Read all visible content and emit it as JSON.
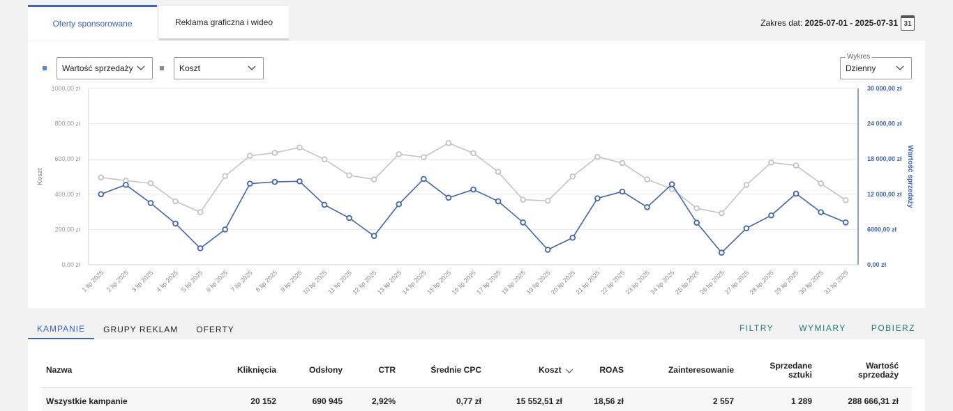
{
  "tabs": {
    "sponsored": "Oferty sponsorowane",
    "display": "Reklama graficzna i wideo"
  },
  "date_range": {
    "label": "Zakres dat:",
    "value": "2025-07-01 - 2025-07-31",
    "calendar_day": "31"
  },
  "controls": {
    "metric1": "Wartość sprzedaży",
    "metric2": "Koszt",
    "chart_label": "Wykres",
    "chart_period": "Dzienny"
  },
  "colors": {
    "accent": "#3a62c2",
    "series1": "#3f63b5",
    "series2": "#c3c3c3",
    "action": "#1e7d6c"
  },
  "chart_data": {
    "type": "line",
    "categories": [
      "1 lip 2025",
      "2 lip 2025",
      "3 lip 2025",
      "4 lip 2025",
      "5 lip 2025",
      "6 lip 2025",
      "7 lip 2025",
      "8 lip 2025",
      "9 lip 2025",
      "10 lip 2025",
      "11 lip 2025",
      "12 lip 2025",
      "13 lip 2025",
      "14 lip 2025",
      "15 lip 2025",
      "16 lip 2025",
      "17 lip 2025",
      "18 lip 2025",
      "19 lip 2025",
      "20 lip 2025",
      "21 lip 2025",
      "22 lip 2025",
      "23 lip 2025",
      "24 lip 2025",
      "25 lip 2025",
      "26 lip 2025",
      "27 lip 2025",
      "28 lip 2025",
      "29 lip 2025",
      "30 lip 2025",
      "31 lip 2025"
    ],
    "left_axis": {
      "label": "Koszt",
      "ticks": [
        "0,00 zł",
        "200,00 zł",
        "400,00 zł",
        "600,00 zł",
        "800,00 zł",
        "1000,00 zł"
      ],
      "ylim": [
        0,
        1000
      ]
    },
    "right_axis": {
      "label": "Wartość sprzedaży",
      "ticks": [
        "0,00 zł",
        "6000,00 zł",
        "12 000,00 zł",
        "18 000,00 zł",
        "24 000,00 zł",
        "30 000,00 zł"
      ],
      "ylim": [
        0,
        30000
      ]
    },
    "series": [
      {
        "name": "Wartość sprzedaży",
        "axis": "right",
        "values": [
          12000,
          13600,
          10500,
          7000,
          2800,
          6000,
          13800,
          14100,
          14200,
          10200,
          7950,
          4900,
          10300,
          14600,
          11400,
          12800,
          10800,
          7200,
          2550,
          4600,
          11300,
          12450,
          9800,
          13700,
          7150,
          2050,
          6200,
          8400,
          12100,
          8950,
          7200
        ]
      },
      {
        "name": "Koszt",
        "axis": "left",
        "values": [
          495,
          477,
          462,
          360,
          298,
          503,
          618,
          635,
          665,
          598,
          507,
          484,
          627,
          610,
          690,
          633,
          527,
          369,
          363,
          501,
          612,
          577,
          484,
          430,
          320,
          292,
          453,
          580,
          563,
          461,
          366
        ]
      }
    ],
    "grid": true
  },
  "sub_tabs": [
    "KAMPANIE",
    "GRUPY REKLAM",
    "OFERTY"
  ],
  "actions": [
    "FILTRY",
    "WYMIARY",
    "POBIERZ"
  ],
  "table": {
    "headers": {
      "name": "Nazwa",
      "clicks": "Kliknięcia",
      "views": "Odsłony",
      "ctr": "CTR",
      "cpc": "Średnie CPC",
      "cost": "Koszt",
      "roas": "ROAS",
      "interest": "Zainteresowanie",
      "sold1": "Sprzedane",
      "sold2": "sztuki",
      "value1": "Wartość",
      "value2": "sprzedaży"
    },
    "row": {
      "name": "Wszystkie kampanie",
      "clicks": "20 152",
      "views": "690 945",
      "ctr": "2,92%",
      "cpc": "0,77 zł",
      "cost": "15 552,51 zł",
      "roas": "18,56 zł",
      "interest": "2 557",
      "sold": "1 289",
      "value": "288 666,31 zł"
    }
  }
}
